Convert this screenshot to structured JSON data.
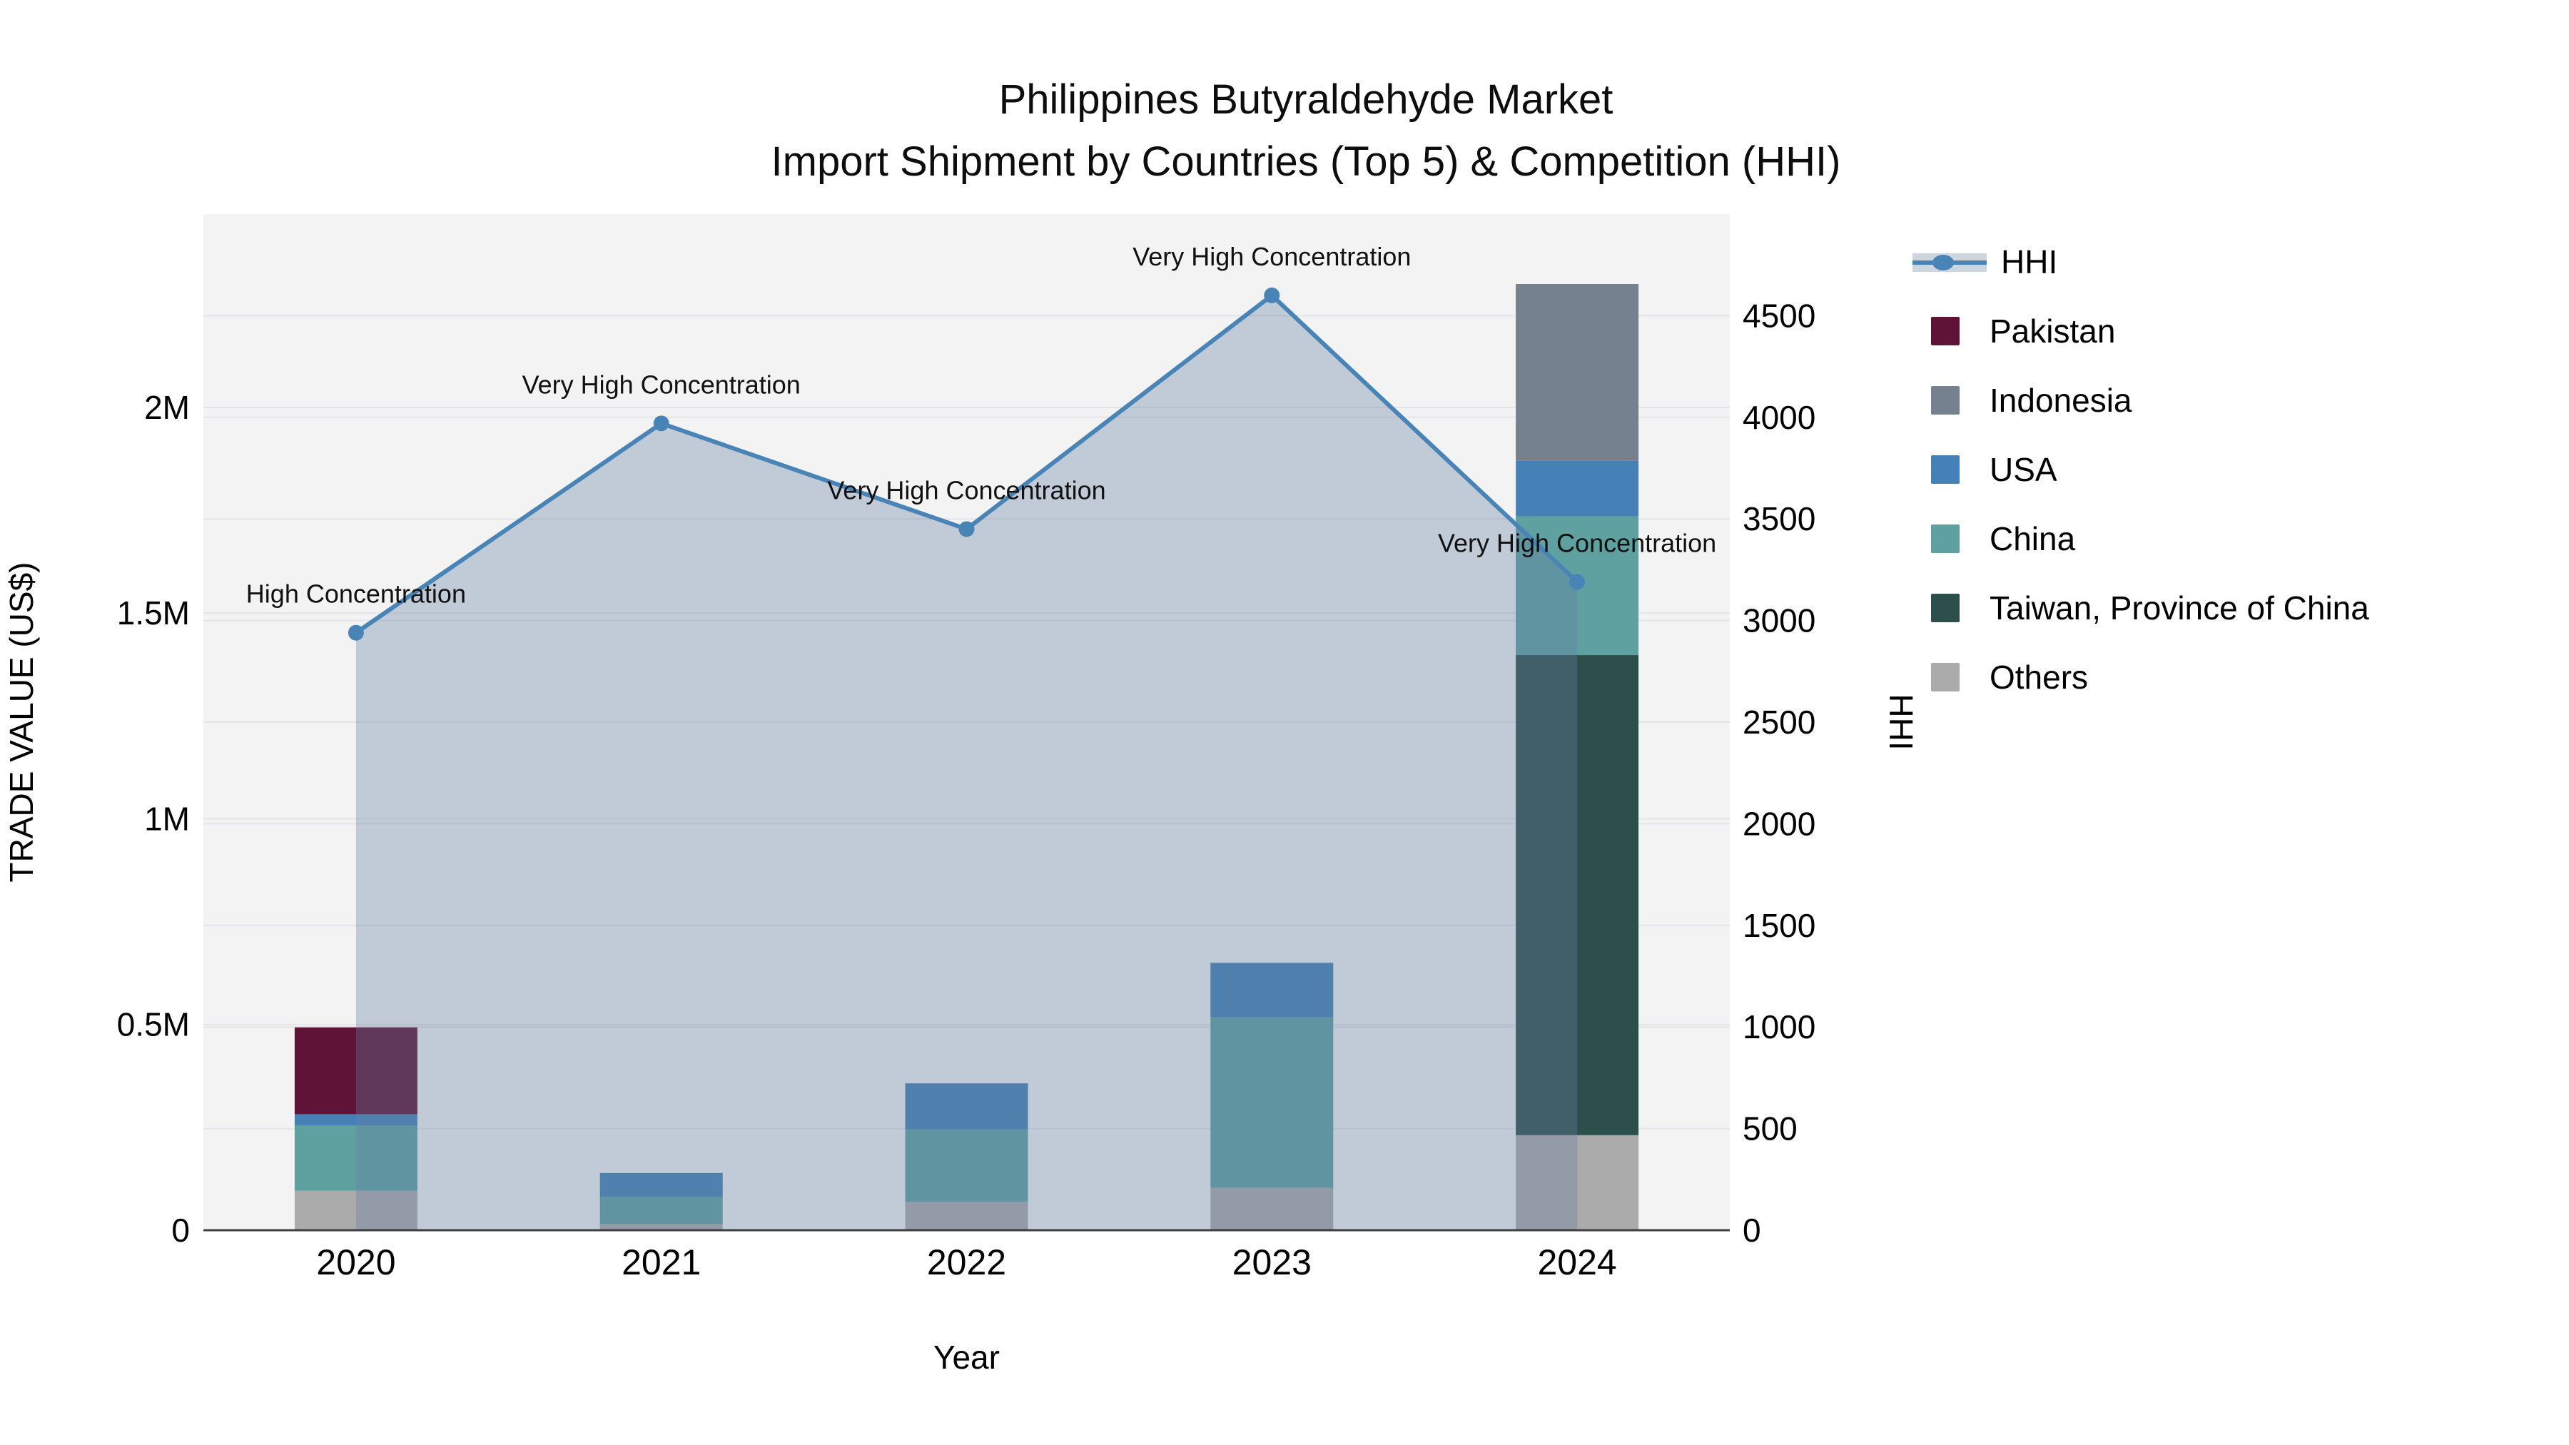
{
  "title": {
    "line1": "Philippines Butyraldehyde Market",
    "line2": "Import Shipment by Countries (Top 5) & Competition (HHI)"
  },
  "legend": {
    "items": [
      {
        "label": "HHI",
        "type": "line",
        "color": "#4884B6",
        "fill": "#CDD5DE"
      },
      {
        "label": "Pakistan",
        "type": "box",
        "color": "#5F1337"
      },
      {
        "label": "Indonesia",
        "type": "box",
        "color": "#75818F"
      },
      {
        "label": "USA",
        "type": "box",
        "color": "#4581B6"
      },
      {
        "label": "China",
        "type": "box",
        "color": "#5FA0A1"
      },
      {
        "label": "Taiwan, Province of China",
        "type": "box",
        "color": "#2D4F4C"
      },
      {
        "label": "Others",
        "type": "box",
        "color": "#ABABAB"
      }
    ]
  },
  "chart_data": {
    "type": "bar+line",
    "title": "Philippines Butyraldehyde Market — Import Shipment by Countries (Top 5) & Competition (HHI)",
    "categories": [
      "2020",
      "2021",
      "2022",
      "2023",
      "2024"
    ],
    "stack_order_bottom_to_top": [
      "Others",
      "Taiwan, Province of China",
      "China",
      "USA",
      "Indonesia",
      "Pakistan"
    ],
    "bar_series": [
      {
        "name": "Others",
        "color": "#ABABAB",
        "values": [
          96000,
          15000,
          69000,
          103000,
          231000
        ]
      },
      {
        "name": "Taiwan, Province of China",
        "color": "#2D4F4C",
        "values": [
          0,
          0,
          0,
          0,
          1167000
        ]
      },
      {
        "name": "China",
        "color": "#5FA0A1",
        "values": [
          159000,
          66000,
          176000,
          415000,
          337000
        ]
      },
      {
        "name": "USA",
        "color": "#4581B6",
        "values": [
          27000,
          58000,
          112000,
          132000,
          135000
        ]
      },
      {
        "name": "Indonesia",
        "color": "#75818F",
        "values": [
          0,
          0,
          0,
          0,
          430000
        ]
      },
      {
        "name": "Pakistan",
        "color": "#5F1337",
        "values": [
          211000,
          0,
          0,
          0,
          0
        ]
      }
    ],
    "bar_totals": [
      493000,
      139000,
      357000,
      650000,
      2300000
    ],
    "line_series": {
      "name": "HHI",
      "color": "#4884B6",
      "area_fill": "rgba(100,125,160,0.35)",
      "values": [
        2940,
        3970,
        3450,
        4600,
        3190
      ],
      "annotations": [
        "High Concentration",
        "Very High Concentration",
        "Very High Concentration",
        "Very High Concentration",
        "Very High Concentration"
      ]
    },
    "axes": {
      "x": {
        "title": "Year",
        "tick_labels": [
          "2020",
          "2021",
          "2022",
          "2023",
          "2024"
        ]
      },
      "y_left": {
        "title": "TRADE VALUE (US$)",
        "range": [
          0,
          2470000
        ],
        "ticks": [
          {
            "value": 0,
            "label": "0"
          },
          {
            "value": 500000,
            "label": "0.5M"
          },
          {
            "value": 1000000,
            "label": "1M"
          },
          {
            "value": 1500000,
            "label": "1.5M"
          },
          {
            "value": 2000000,
            "label": "2M"
          }
        ]
      },
      "y_right": {
        "title": "HHI",
        "range": [
          0,
          5000
        ],
        "ticks": [
          {
            "value": 0,
            "label": "0"
          },
          {
            "value": 500,
            "label": "500"
          },
          {
            "value": 1000,
            "label": "1000"
          },
          {
            "value": 1500,
            "label": "1500"
          },
          {
            "value": 2000,
            "label": "2000"
          },
          {
            "value": 2500,
            "label": "2500"
          },
          {
            "value": 3000,
            "label": "3000"
          },
          {
            "value": 3500,
            "label": "3500"
          },
          {
            "value": 4000,
            "label": "4000"
          },
          {
            "value": 4500,
            "label": "4500"
          }
        ]
      }
    },
    "style": {
      "plot_bg": "#F3F3F4",
      "grid_color": "#E4E4E8",
      "axis_line_color": "#3F3F3F",
      "annotation_color": "#111111",
      "tick_color": "#000000"
    }
  }
}
